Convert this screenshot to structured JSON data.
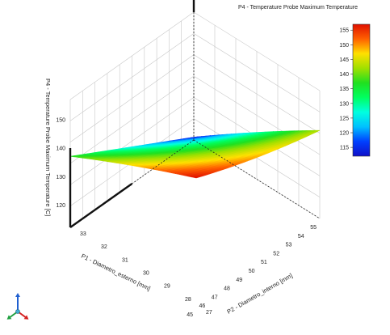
{
  "chart_data": {
    "type": "surface",
    "title": "P4 - Temperature Probe Maximum Temperature",
    "zlabel": "P4 - Temperature Probe Maximum Temperature  [C]",
    "xlabel": "P1 - Diametro_esterno  [mm]",
    "ylabel": "P2 - Diametro_interno  [mm]",
    "x_ticks": [
      "45",
      "46",
      "47",
      "48",
      "49",
      "50",
      "51",
      "52",
      "53",
      "54",
      "55"
    ],
    "y_ticks": [
      "27",
      "28",
      "29",
      "30",
      "31",
      "32",
      "33"
    ],
    "z_ticks": [
      "120",
      "130",
      "140",
      "150"
    ],
    "xlim": [
      45,
      55
    ],
    "ylim": [
      27,
      33
    ],
    "zlim": [
      112,
      157
    ],
    "colorbar": {
      "ticks": [
        "115",
        "120",
        "125",
        "130",
        "135",
        "140",
        "145",
        "150",
        "155"
      ],
      "min": 112,
      "max": 157,
      "colors": [
        "#1010c8",
        "#0040ff",
        "#00c0ff",
        "#00ffe0",
        "#00ff60",
        "#20e020",
        "#a0e000",
        "#ffe000",
        "#ff6000",
        "#e01000"
      ]
    },
    "corner_values": [
      {
        "x": 45,
        "y": 27,
        "z": 157
      },
      {
        "x": 55,
        "y": 27,
        "z": 143
      },
      {
        "x": 45,
        "y": 33,
        "z": 137
      },
      {
        "x": 55,
        "y": 33,
        "z": 113
      }
    ],
    "grid": true
  },
  "triad": {
    "x_color": "#d42020",
    "y_color": "#20a040",
    "z_color": "#2060d0"
  }
}
